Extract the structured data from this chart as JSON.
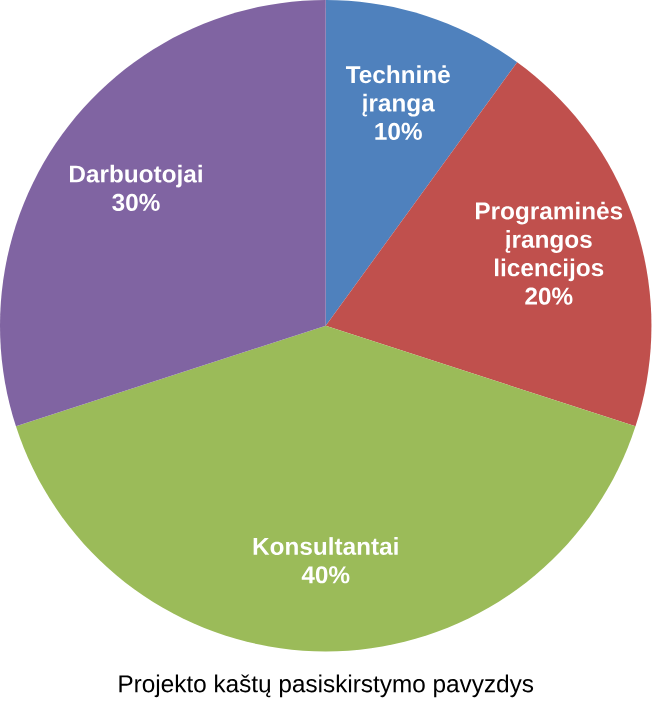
{
  "chart_data": {
    "type": "pie",
    "title": "Projekto kaštų pasiskirstymo pavyzdys",
    "categories": [
      "Techninė įranga",
      "Programinės įrangos licencijos",
      "Konsultantai",
      "Darbuotojai"
    ],
    "values": [
      10,
      20,
      40,
      30
    ],
    "value_labels": [
      "10%",
      "20%",
      "40%",
      "30%"
    ],
    "colors": [
      "#4f81bd",
      "#c0504d",
      "#9bbb59",
      "#8064a2"
    ]
  }
}
